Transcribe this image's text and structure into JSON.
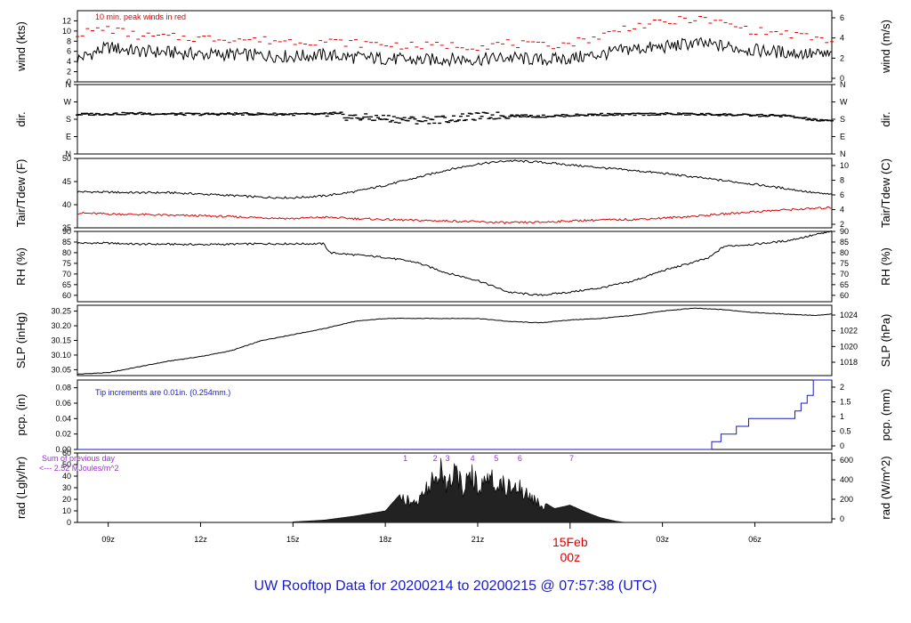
{
  "footer_title": "UW Rooftop Data for 20200214  to  20200215 @ 07:57:38  (UTC)",
  "colors": {
    "axis": "#000000",
    "peak": "#e00000",
    "dew": "#e00000",
    "precip": "#1a1acc",
    "note": "#1a1acc",
    "rad_labels": "#9933cc",
    "day_label": "#e00000"
  },
  "chart_data": [
    {
      "type": "line",
      "panel": "wind",
      "ylabel": "wind (kts)",
      "ylabel_right": "wind (m/s)",
      "ylim": [
        0,
        14
      ],
      "yticks": [
        0,
        2,
        4,
        6,
        8,
        10,
        12
      ],
      "yticks_right": [
        0,
        2,
        4,
        6
      ],
      "annotation": "10 min. peak winds in red",
      "series": [
        {
          "x": [
            8.0,
            9.0,
            10.0,
            11.0,
            12.0,
            13.0,
            14.0,
            15.0,
            16.0,
            17.0,
            18.0,
            19.0,
            20.0,
            21.0,
            22.0,
            23.0,
            24.0,
            25.0,
            26.0,
            27.0,
            28.0,
            29.0,
            30.0,
            31.0,
            32.0,
            32.5
          ],
          "values": [
            4.5,
            6.8,
            6.0,
            5.8,
            5.4,
            5.4,
            5.2,
            5.0,
            5.3,
            4.8,
            4.6,
            4.2,
            4.5,
            4.4,
            4.8,
            4.3,
            4.6,
            5.4,
            6.5,
            6.8,
            7.6,
            7.0,
            6.2,
            5.8,
            5.4,
            5.2
          ]
        },
        {
          "name": "peak",
          "x": [
            8.0,
            9.0,
            10.0,
            11.0,
            12.0,
            13.0,
            14.0,
            15.0,
            16.0,
            17.0,
            18.0,
            19.0,
            20.0,
            21.0,
            22.0,
            23.0,
            24.0,
            25.0,
            26.0,
            27.0,
            28.0,
            29.0,
            30.0,
            31.0,
            32.0,
            32.5
          ],
          "values": [
            9.5,
            10.5,
            9.0,
            8.8,
            8.6,
            8.5,
            8.2,
            8.0,
            8.0,
            7.6,
            7.4,
            7.0,
            7.2,
            7.0,
            7.6,
            7.0,
            7.6,
            9.0,
            11.0,
            11.5,
            12.5,
            11.5,
            10.0,
            9.5,
            8.5,
            8.0
          ]
        }
      ]
    },
    {
      "type": "scatter",
      "panel": "dir",
      "ylabel": "dir.",
      "ylabel_right": "dir.",
      "ylim": [
        0,
        360
      ],
      "ytick_labels": [
        "N",
        "E",
        "S",
        "W",
        "N"
      ],
      "series": [
        {
          "x": [
            8.0,
            9.0,
            10.0,
            11.0,
            12.0,
            13.0,
            14.0,
            15.0,
            16.0,
            17.0,
            18.0,
            19.0,
            20.0,
            21.0,
            22.0,
            23.0,
            24.0,
            25.0,
            26.0,
            27.0,
            28.0,
            29.0,
            30.0,
            31.0,
            32.0,
            32.5
          ],
          "values": [
            205,
            208,
            210,
            207,
            206,
            208,
            207,
            206,
            205,
            190,
            185,
            175,
            180,
            195,
            200,
            195,
            200,
            205,
            205,
            208,
            206,
            204,
            200,
            198,
            175,
            170
          ]
        }
      ]
    },
    {
      "type": "line",
      "panel": "temp",
      "ylabel": "Tair/Tdew (F)",
      "ylabel_right": "Tair/Tdew (C)",
      "ylim": [
        35,
        50
      ],
      "yticks": [
        35,
        40,
        45,
        50
      ],
      "yticks_right": [
        2,
        4,
        6,
        8,
        10
      ],
      "series": [
        {
          "name": "Tair",
          "x": [
            8.0,
            9.0,
            10.0,
            11.0,
            12.0,
            13.0,
            14.0,
            15.0,
            16.0,
            17.0,
            18.0,
            19.0,
            20.0,
            21.0,
            22.0,
            23.0,
            24.0,
            25.0,
            26.0,
            27.0,
            28.0,
            29.0,
            30.0,
            31.0,
            32.0,
            32.5
          ],
          "values": [
            42.8,
            42.7,
            42.6,
            42.6,
            42.3,
            42.0,
            41.6,
            41.5,
            41.9,
            42.8,
            44.2,
            45.8,
            47.5,
            48.8,
            49.5,
            49.2,
            48.6,
            48.0,
            47.4,
            46.8,
            46.0,
            45.2,
            44.4,
            43.5,
            42.5,
            42.2
          ]
        },
        {
          "name": "Tdew",
          "x": [
            8.0,
            9.0,
            10.0,
            11.0,
            12.0,
            13.0,
            14.0,
            15.0,
            16.0,
            17.0,
            18.0,
            19.0,
            20.0,
            21.0,
            22.0,
            23.0,
            24.0,
            25.0,
            26.0,
            27.0,
            28.0,
            29.0,
            30.0,
            31.0,
            32.0,
            32.5
          ],
          "values": [
            38.2,
            38.0,
            37.9,
            37.7,
            37.6,
            37.4,
            37.2,
            37.0,
            37.3,
            37.0,
            36.8,
            36.6,
            36.5,
            36.3,
            36.1,
            36.2,
            36.5,
            36.7,
            36.8,
            37.1,
            37.5,
            38.0,
            38.5,
            38.9,
            39.2,
            39.4
          ]
        }
      ]
    },
    {
      "type": "line",
      "panel": "rh",
      "ylabel": "RH (%)",
      "ylabel_right": "RH (%)",
      "ylim": [
        57,
        90
      ],
      "yticks": [
        60,
        65,
        70,
        75,
        80,
        85,
        90
      ],
      "series": [
        {
          "x": [
            8.0,
            9.0,
            10.0,
            11.0,
            12.0,
            13.0,
            14.0,
            15.0,
            16.0,
            16.2,
            17.0,
            18.0,
            19.0,
            20.0,
            21.0,
            22.0,
            23.0,
            24.0,
            25.0,
            26.0,
            27.0,
            28.0,
            28.5,
            29.0,
            30.0,
            31.0,
            32.0,
            32.5
          ],
          "values": [
            84.5,
            84.5,
            84.0,
            84.0,
            83.8,
            84.0,
            84.2,
            84.2,
            84.2,
            80.0,
            79.0,
            77.8,
            75.5,
            70.5,
            67.0,
            61.5,
            60.0,
            61.5,
            63.5,
            66.5,
            71.5,
            75.5,
            77.5,
            83.0,
            84.0,
            85.5,
            88.5,
            90.0
          ]
        }
      ]
    },
    {
      "type": "line",
      "panel": "slp",
      "ylabel": "SLP (inHg)",
      "ylabel_right": "SLP (hPa)",
      "ylim": [
        30.03,
        30.27
      ],
      "yticks": [
        30.05,
        30.1,
        30.15,
        30.2,
        30.25
      ],
      "ytick_labels": [
        "30.05",
        "30.10",
        "30.15",
        "30.20",
        "30.25"
      ],
      "yticks_right": [
        1018,
        1020,
        1022,
        1024
      ],
      "series": [
        {
          "x": [
            8.0,
            9.0,
            10.0,
            11.0,
            12.0,
            13.0,
            14.0,
            15.0,
            16.0,
            17.0,
            18.0,
            19.0,
            20.0,
            21.0,
            22.0,
            23.0,
            24.0,
            25.0,
            26.0,
            27.0,
            28.0,
            29.0,
            30.0,
            31.0,
            32.0,
            32.5
          ],
          "values": [
            30.035,
            30.04,
            30.06,
            30.08,
            30.095,
            30.115,
            30.15,
            30.17,
            30.19,
            30.215,
            30.225,
            30.225,
            30.225,
            30.225,
            30.215,
            30.21,
            30.22,
            30.225,
            30.235,
            30.25,
            30.26,
            30.255,
            30.245,
            30.24,
            30.235,
            30.24
          ]
        }
      ]
    },
    {
      "type": "line",
      "panel": "pcp",
      "ylabel": "pcp. (in)",
      "ylabel_right": "pcp. (mm)",
      "ylim": [
        0,
        0.09
      ],
      "yticks": [
        0.0,
        0.02,
        0.04,
        0.06,
        0.08
      ],
      "ytick_labels": [
        "0.00",
        "0.02",
        "0.04",
        "0.06",
        "0.08"
      ],
      "yticks_right": [
        0,
        0.5,
        1,
        1.5,
        2
      ],
      "annotation": "Tip increments are 0.01in. (0.254mm.)",
      "series": [
        {
          "x": [
            8.0,
            28.3,
            28.6,
            28.9,
            29.4,
            29.8,
            30.3,
            30.9,
            31.3,
            31.5,
            31.7,
            31.9,
            32.5
          ],
          "values": [
            0.0,
            0.0,
            0.01,
            0.02,
            0.03,
            0.04,
            0.04,
            0.04,
            0.05,
            0.06,
            0.07,
            0.09,
            0.09
          ]
        }
      ]
    },
    {
      "type": "area",
      "panel": "rad",
      "ylabel": "rad (Lgly/hr)",
      "ylabel_right": "rad (W/m^2)",
      "ylim": [
        0,
        60
      ],
      "yticks": [
        0,
        10,
        20,
        30,
        40,
        50,
        60
      ],
      "yticks_right": [
        0,
        200,
        400,
        600
      ],
      "annotations": [
        "Sum of previous day",
        "<--- 2.52 MJoules/m^2"
      ],
      "peak_labels": [
        "1",
        "2",
        "3",
        "4",
        "5",
        "6",
        "7"
      ],
      "peak_label_x": [
        18.65,
        19.62,
        20.02,
        20.83,
        21.6,
        22.37,
        24.05
      ],
      "series": [
        {
          "x": [
            15.0,
            16.0,
            17.0,
            18.0,
            18.6,
            19.0,
            19.5,
            19.8,
            20.0,
            20.3,
            20.5,
            20.8,
            21.0,
            21.3,
            21.6,
            22.0,
            22.3,
            22.6,
            23.0,
            23.5,
            24.0,
            24.5,
            25.0,
            25.5,
            25.8
          ],
          "values": [
            0.5,
            2.0,
            5.5,
            10.0,
            28.0,
            20.0,
            48.0,
            58.0,
            45.0,
            54.0,
            38.0,
            53.0,
            40.0,
            50.0,
            44.0,
            38.0,
            40.0,
            30.0,
            20.0,
            12.0,
            15.0,
            9.0,
            4.0,
            1.0,
            0.0
          ]
        }
      ]
    }
  ],
  "xaxis": {
    "range": [
      8.0,
      32.5
    ],
    "ticks": [
      9,
      12,
      15,
      18,
      21,
      27,
      30
    ],
    "tick_labels": [
      "09z",
      "12z",
      "15z",
      "18z",
      "21z",
      "03z",
      "06z"
    ],
    "day_tick": 24,
    "day_label": "15Feb",
    "day_sublabel": "00z"
  }
}
